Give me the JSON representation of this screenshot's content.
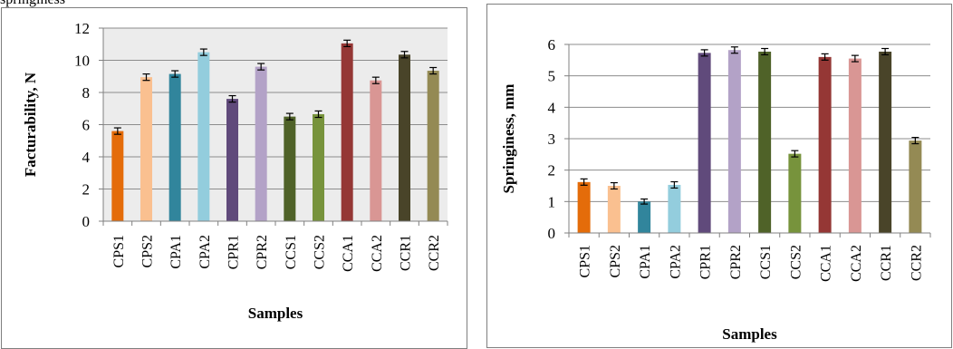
{
  "page": {
    "top_text": "springiness"
  },
  "chart_data": [
    {
      "type": "bar",
      "xlabel": "Samples",
      "ylabel": "Facturability, N",
      "ylim": [
        0,
        12
      ],
      "yticks": [
        0,
        2,
        4,
        6,
        8,
        10,
        12
      ],
      "grid": true,
      "plot_background": "#ececec",
      "categories": [
        "CPS1",
        "CPS2",
        "CPA1",
        "CPA2",
        "CPR1",
        "CPR2",
        "CCS1",
        "CCS2",
        "CCA1",
        "CCA2",
        "CCR1",
        "CCR2"
      ],
      "values": [
        5.6,
        8.95,
        9.15,
        10.5,
        7.6,
        9.6,
        6.5,
        6.65,
        11.05,
        8.75,
        10.35,
        9.35
      ],
      "errors": [
        0.2,
        0.2,
        0.2,
        0.2,
        0.2,
        0.2,
        0.2,
        0.2,
        0.2,
        0.2,
        0.2,
        0.2
      ],
      "colors": [
        "#e46c0a",
        "#fac090",
        "#31859c",
        "#93cddd",
        "#604a7b",
        "#b3a2c7",
        "#4f6228",
        "#77933c",
        "#953735",
        "#d99694",
        "#494429",
        "#948a54"
      ]
    },
    {
      "type": "bar",
      "xlabel": "Samples",
      "ylabel": "Springiness,  mm",
      "ylim": [
        0,
        6
      ],
      "yticks": [
        0,
        1,
        2,
        3,
        4,
        5,
        6
      ],
      "grid": true,
      "plot_background": "#ffffff",
      "categories": [
        "CPS1",
        "CPS2",
        "CPA1",
        "CPA2",
        "CPR1",
        "CPR2",
        "CCS1",
        "CCS2",
        "CCA1",
        "CCA2",
        "CCR1",
        "CCR2"
      ],
      "values": [
        1.62,
        1.5,
        1.0,
        1.53,
        5.73,
        5.82,
        5.77,
        2.52,
        5.6,
        5.55,
        5.77,
        2.94
      ],
      "errors": [
        0.1,
        0.1,
        0.08,
        0.1,
        0.1,
        0.1,
        0.1,
        0.1,
        0.1,
        0.1,
        0.1,
        0.1
      ],
      "colors": [
        "#e46c0a",
        "#fac090",
        "#31859c",
        "#93cddd",
        "#604a7b",
        "#b3a2c7",
        "#4f6228",
        "#77933c",
        "#953735",
        "#d99694",
        "#494429",
        "#948a54"
      ]
    }
  ]
}
